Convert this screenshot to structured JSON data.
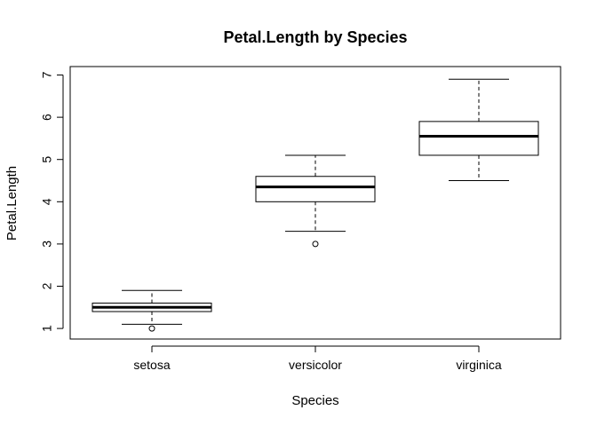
{
  "chart_data": {
    "type": "box",
    "title": "Petal.Length by Species",
    "xlabel": "Species",
    "ylabel": "Petal.Length",
    "ylim": [
      0.75,
      7.2
    ],
    "yticks": [
      "1",
      "2",
      "3",
      "4",
      "5",
      "6",
      "7"
    ],
    "categories": [
      "setosa",
      "versicolor",
      "virginica"
    ],
    "boxes": [
      {
        "category": "setosa",
        "whisker_low": 1.1,
        "q1": 1.4,
        "median": 1.5,
        "q3": 1.6,
        "whisker_high": 1.9,
        "outliers": [
          1.0
        ]
      },
      {
        "category": "versicolor",
        "whisker_low": 3.3,
        "q1": 4.0,
        "median": 4.35,
        "q3": 4.6,
        "whisker_high": 5.1,
        "outliers": [
          3.0
        ]
      },
      {
        "category": "virginica",
        "whisker_low": 4.5,
        "q1": 5.1,
        "median": 5.55,
        "q3": 5.9,
        "whisker_high": 6.9,
        "outliers": []
      }
    ]
  }
}
